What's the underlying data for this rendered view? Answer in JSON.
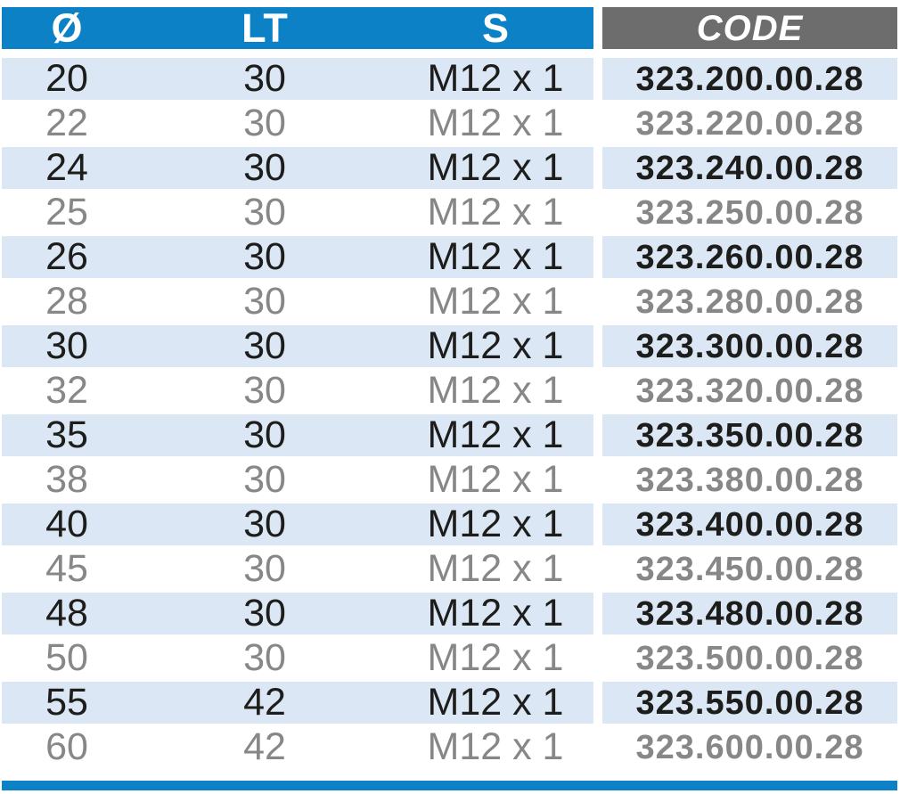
{
  "table": {
    "headers": [
      {
        "label": "Ø"
      },
      {
        "label": "LT"
      },
      {
        "label": "S"
      },
      {
        "label": "CODE"
      }
    ],
    "rows": [
      {
        "d": "20",
        "lt": "30",
        "s": "M12 x 1",
        "code": "323.200.00.28",
        "highlighted": true
      },
      {
        "d": "22",
        "lt": "30",
        "s": "M12 x 1",
        "code": "323.220.00.28",
        "highlighted": false
      },
      {
        "d": "24",
        "lt": "30",
        "s": "M12 x 1",
        "code": "323.240.00.28",
        "highlighted": true
      },
      {
        "d": "25",
        "lt": "30",
        "s": "M12 x 1",
        "code": "323.250.00.28",
        "highlighted": false
      },
      {
        "d": "26",
        "lt": "30",
        "s": "M12 x 1",
        "code": "323.260.00.28",
        "highlighted": true
      },
      {
        "d": "28",
        "lt": "30",
        "s": "M12 x 1",
        "code": "323.280.00.28",
        "highlighted": false
      },
      {
        "d": "30",
        "lt": "30",
        "s": "M12 x 1",
        "code": "323.300.00.28",
        "highlighted": true
      },
      {
        "d": "32",
        "lt": "30",
        "s": "M12 x 1",
        "code": "323.320.00.28",
        "highlighted": false
      },
      {
        "d": "35",
        "lt": "30",
        "s": "M12 x 1",
        "code": "323.350.00.28",
        "highlighted": true
      },
      {
        "d": "38",
        "lt": "30",
        "s": "M12 x 1",
        "code": "323.380.00.28",
        "highlighted": false
      },
      {
        "d": "40",
        "lt": "30",
        "s": "M12 x 1",
        "code": "323.400.00.28",
        "highlighted": true
      },
      {
        "d": "45",
        "lt": "30",
        "s": "M12 x 1",
        "code": "323.450.00.28",
        "highlighted": false
      },
      {
        "d": "48",
        "lt": "30",
        "s": "M12 x 1",
        "code": "323.480.00.28",
        "highlighted": true
      },
      {
        "d": "50",
        "lt": "30",
        "s": "M12 x 1",
        "code": "323.500.00.28",
        "highlighted": false
      },
      {
        "d": "55",
        "lt": "42",
        "s": "M12 x 1",
        "code": "323.550.00.28",
        "highlighted": true
      },
      {
        "d": "60",
        "lt": "42",
        "s": "M12 x 1",
        "code": "323.600.00.28",
        "highlighted": false
      }
    ]
  },
  "colors": {
    "header_blue": "#0d81c5",
    "header_gray": "#6d6d6d",
    "row_band_blue": "#dbe7f4",
    "text_dark": "#1d1d1b",
    "text_gray": "#878787",
    "bottom_bar_blue": "#0d81c5"
  }
}
